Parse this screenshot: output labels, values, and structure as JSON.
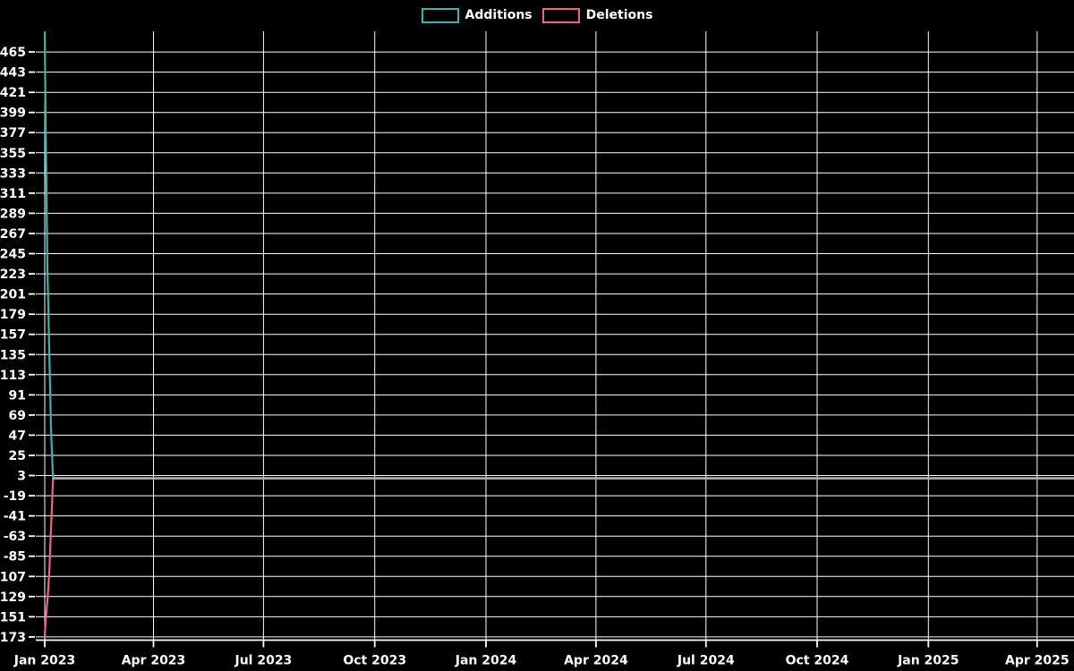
{
  "page": {
    "background": "#000000",
    "text_color": "#ffffff"
  },
  "legend": {
    "position": "top-center",
    "items": [
      {
        "label": "Additions",
        "color": "#45b0a8"
      },
      {
        "label": "Deletions",
        "color": "#f0647f"
      }
    ]
  },
  "chart_data": {
    "type": "line",
    "title": "",
    "xlabel": "",
    "ylabel": "",
    "grid": true,
    "grid_color": "#ffffff",
    "axis_color": "#ffffff",
    "text_color": "#ffffff",
    "background_color": "#000000",
    "y_ticks": [
      465,
      443,
      421,
      399,
      377,
      355,
      333,
      311,
      289,
      267,
      245,
      223,
      201,
      179,
      157,
      135,
      113,
      91,
      69,
      47,
      25,
      3,
      -19,
      -41,
      -63,
      -85,
      -107,
      -129,
      -151,
      -173
    ],
    "x_ticks": [
      {
        "label": "Jan 2023",
        "day": 0
      },
      {
        "label": "Apr 2023",
        "day": 90
      },
      {
        "label": "Jul 2023",
        "day": 181
      },
      {
        "label": "Oct 2023",
        "day": 273
      },
      {
        "label": "Jan 2024",
        "day": 365
      },
      {
        "label": "Apr 2024",
        "day": 456
      },
      {
        "label": "Jul 2024",
        "day": 547
      },
      {
        "label": "Oct 2024",
        "day": 639
      },
      {
        "label": "Jan 2025",
        "day": 731
      },
      {
        "label": "Apr 2025",
        "day": 821
      }
    ],
    "xlim_days": [
      -7.4,
      851.5
    ],
    "ylim": [
      -176.5,
      487.5
    ],
    "series": [
      {
        "name": "Additions",
        "color": "#45b0a8",
        "points": [
          [
            0,
            486
          ],
          [
            0.74,
            385
          ],
          [
            2.2,
            229
          ],
          [
            5.2,
            54
          ],
          [
            6.5,
            10
          ],
          [
            6.9,
            0
          ],
          [
            851.5,
            0
          ]
        ]
      },
      {
        "name": "Deletions",
        "color": "#f0647f",
        "points": [
          [
            0,
            -173
          ],
          [
            0.9,
            -152
          ],
          [
            2.2,
            -133
          ],
          [
            3.7,
            -104
          ],
          [
            5.2,
            -55
          ],
          [
            6.2,
            -22
          ],
          [
            6.9,
            0
          ],
          [
            851.5,
            0
          ]
        ]
      }
    ],
    "overlap_line": {
      "from_day": 6.9,
      "to_day": 851.5,
      "value": 0,
      "color": "#9fb2bd"
    }
  }
}
